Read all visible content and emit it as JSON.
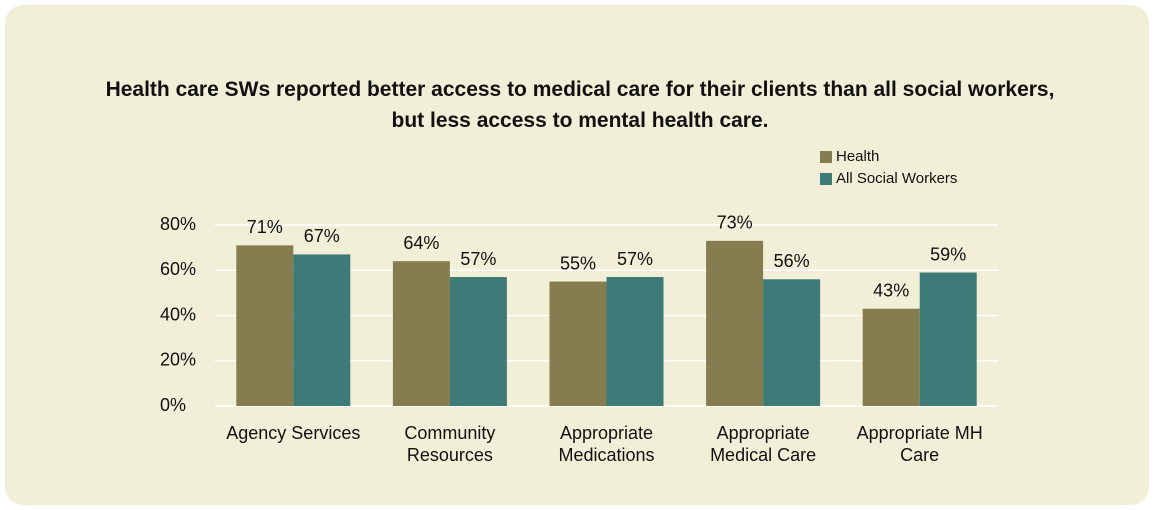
{
  "chart_data": {
    "type": "bar",
    "title": "Health care SWs reported better access to medical care for their clients than all social workers, but less access to mental health care.",
    "categories": [
      "Agency Services",
      "Community Resources",
      "Appropriate Medications",
      "Appropriate Medical Care",
      "Appropriate MH Care"
    ],
    "series": [
      {
        "name": "Health",
        "color": "#857d4f",
        "values": [
          71,
          64,
          55,
          73,
          43
        ],
        "value_labels": [
          "71%",
          "64%",
          "55%",
          "73%",
          "43%"
        ]
      },
      {
        "name": "All Social Workers",
        "color": "#3d7a78",
        "values": [
          67,
          57,
          57,
          56,
          59
        ],
        "value_labels": [
          "67%",
          "57%",
          "57%",
          "56%",
          "59%"
        ]
      }
    ],
    "ylim": [
      0,
      80
    ],
    "yticks": [
      {
        "value": 0,
        "label": "0%"
      },
      {
        "value": 20,
        "label": "20%"
      },
      {
        "value": 40,
        "label": "40%"
      },
      {
        "value": 60,
        "label": "60%"
      },
      {
        "value": 80,
        "label": "80%"
      }
    ],
    "grid": true,
    "legend": "upper right"
  }
}
